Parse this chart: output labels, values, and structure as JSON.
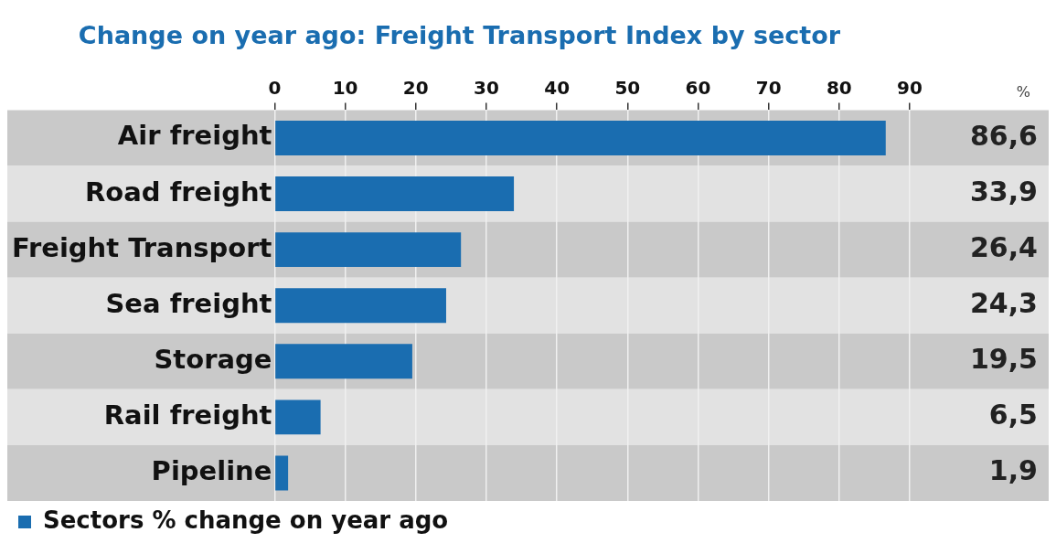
{
  "chart_data": {
    "type": "bar",
    "orientation": "horizontal",
    "title": "Change on year ago: Freight Transport Index by sector",
    "annotations": [
      "%"
    ],
    "categories": [
      "Air freight",
      "Road freight",
      "Freight Transport",
      "Sea freight",
      "Storage",
      "Rail freight",
      "Pipeline"
    ],
    "series": [
      {
        "name": "Sectors % change on year ago",
        "color": "#1a6db0",
        "values": [
          86.6,
          33.9,
          26.4,
          24.3,
          19.5,
          6.5,
          1.9
        ],
        "value_labels": [
          "86,6",
          "33,9",
          "26,4",
          "24,3",
          "19,5",
          "6,5",
          "1,9"
        ]
      }
    ],
    "xlim": [
      0,
      90
    ],
    "xticks": [
      0,
      10,
      20,
      30,
      40,
      50,
      60,
      70,
      80,
      90
    ],
    "grid": "x",
    "legend": "bottom"
  }
}
